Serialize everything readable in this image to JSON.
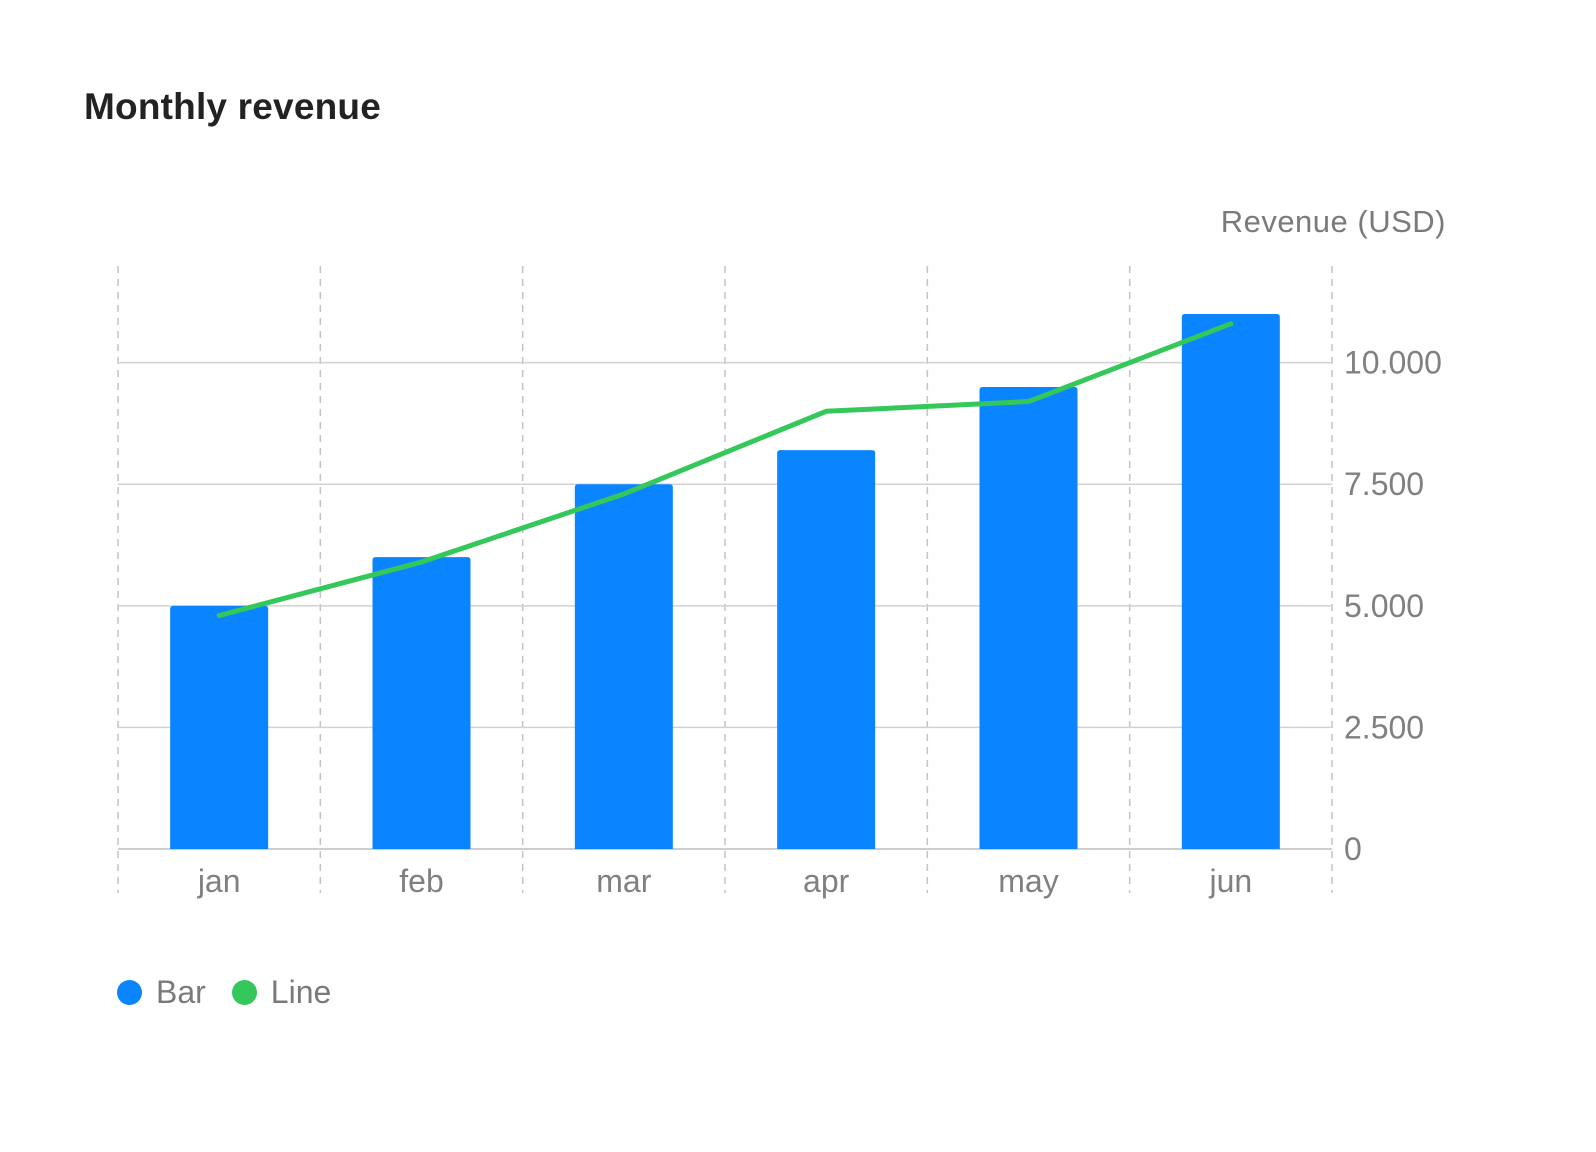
{
  "chart_data": {
    "type": "bar",
    "title": "Monthly revenue",
    "ylabel": "Revenue (USD)",
    "categories": [
      "jan",
      "feb",
      "mar",
      "apr",
      "may",
      "jun"
    ],
    "series": [
      {
        "name": "Bar",
        "type": "bar",
        "color": "#0a84ff",
        "values": [
          5000,
          6000,
          7500,
          8200,
          9500,
          11000
        ]
      },
      {
        "name": "Line",
        "type": "line",
        "color": "#34c759",
        "values": [
          4800,
          5900,
          7300,
          9000,
          9200,
          10800
        ]
      }
    ],
    "ylim": [
      0,
      11000
    ],
    "y_ticks": [
      0,
      2500,
      5000,
      7500,
      10000
    ],
    "y_tick_labels": [
      "0",
      "2.500",
      "5.000",
      "7.500",
      "10.000"
    ],
    "y_axis_position": "right",
    "grid": {
      "horizontal": "solid",
      "vertical": "dashed"
    },
    "legend_position": "bottom-left"
  }
}
